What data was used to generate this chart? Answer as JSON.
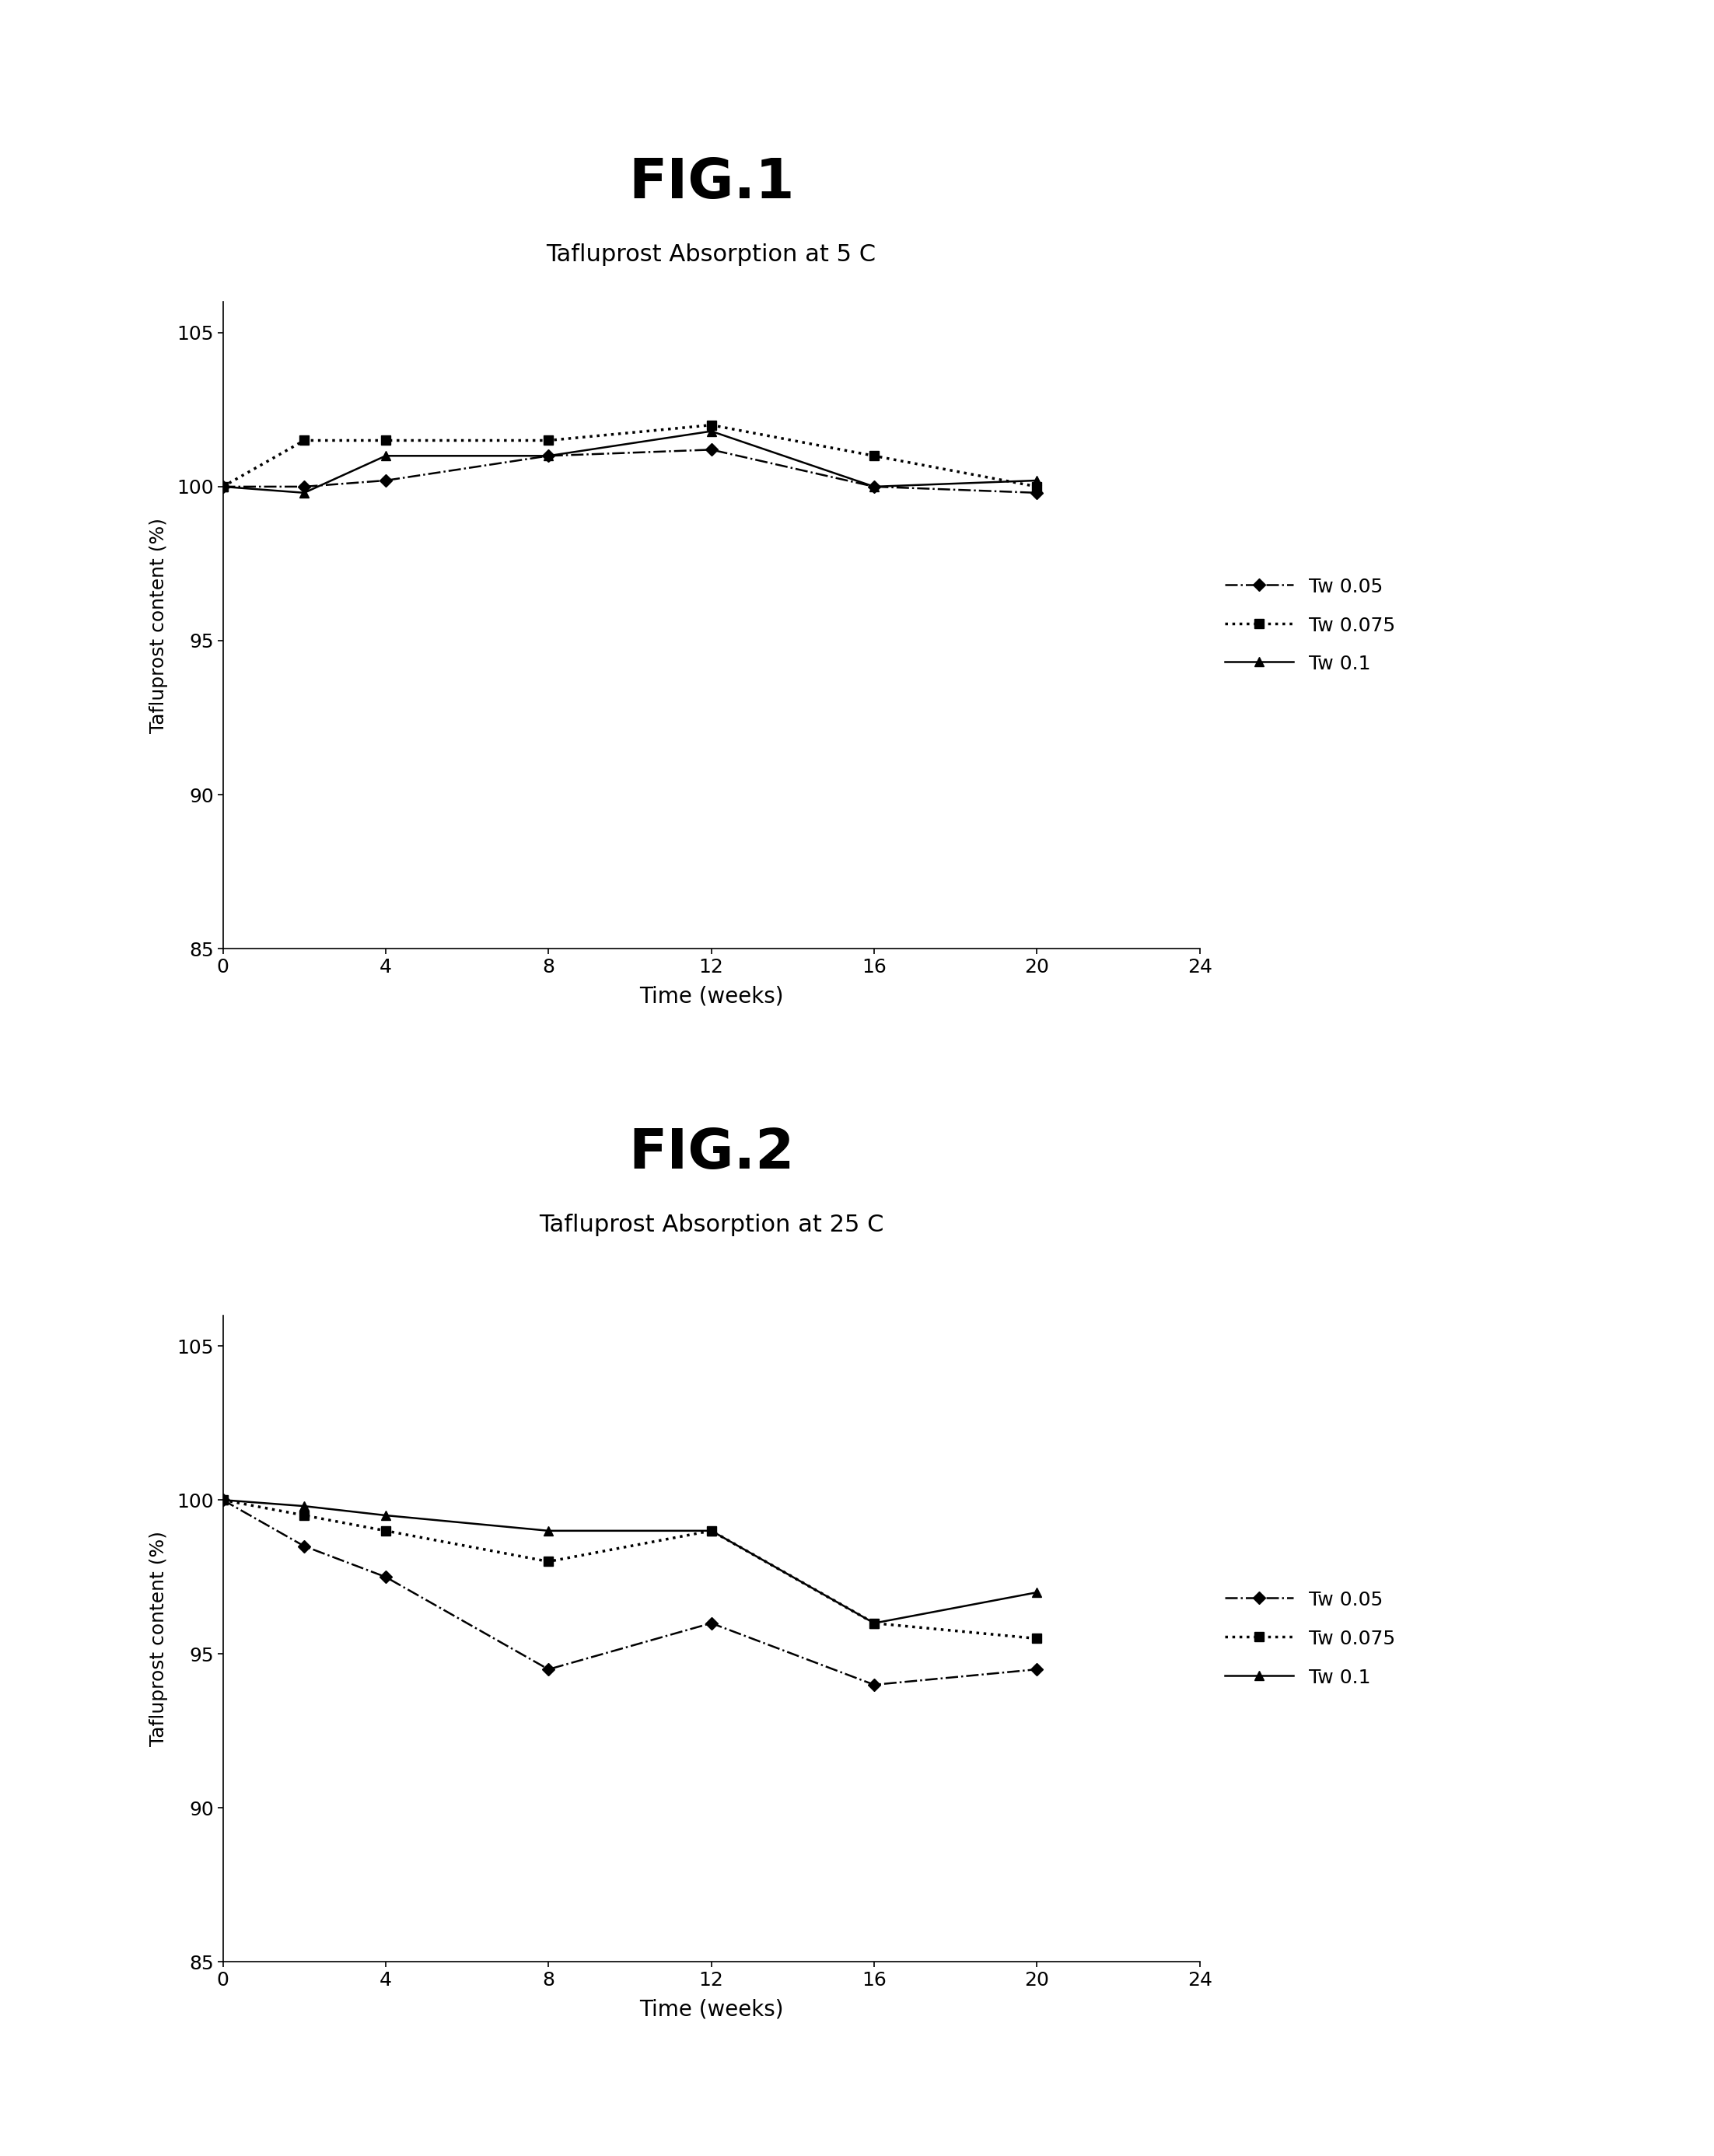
{
  "fig1_title": "FIG.1",
  "fig2_title": "FIG.2",
  "subtitle1": "Tafluprost Absorption at 5 C",
  "subtitle2": "Tafluprost Absorption at 25 C",
  "xlabel": "Time (weeks)",
  "ylabel": "Tafluprost content (%)",
  "x_ticks": [
    0,
    4,
    8,
    12,
    16,
    20,
    24
  ],
  "y_ticks": [
    85,
    90,
    95,
    100,
    105
  ],
  "xlim": [
    0,
    24
  ],
  "ylim": [
    85,
    106
  ],
  "fig1_tw005": [
    100.0,
    100.0,
    100.2,
    101.0,
    101.2,
    100.0,
    99.8
  ],
  "fig1_tw0075": [
    100.0,
    101.5,
    101.5,
    101.5,
    102.0,
    101.0,
    100.0
  ],
  "fig1_tw01": [
    100.0,
    99.8,
    101.0,
    101.0,
    101.8,
    100.0,
    100.2
  ],
  "fig2_tw005": [
    100.0,
    98.5,
    97.5,
    94.5,
    96.0,
    94.0,
    94.5
  ],
  "fig2_tw0075": [
    100.0,
    99.5,
    99.0,
    98.0,
    99.0,
    96.0,
    95.5
  ],
  "fig2_tw01": [
    100.0,
    99.8,
    99.5,
    99.0,
    99.0,
    96.0,
    97.0
  ],
  "x_data": [
    0,
    2,
    4,
    8,
    12,
    16,
    20
  ],
  "legend_labels": [
    "Tw 0.05",
    "Tw 0.075",
    "Tw 0.1"
  ],
  "bg_color": "#ffffff"
}
